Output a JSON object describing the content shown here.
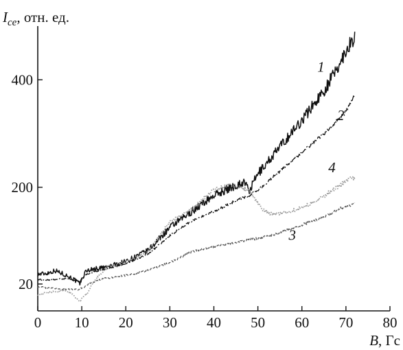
{
  "chart_data": {
    "type": "line",
    "title": "",
    "ylabel": {
      "symbol": "I",
      "subscript": "ce",
      "unit": ", отн. ед."
    },
    "xlabel": {
      "symbol": "B",
      "unit": ", Гс"
    },
    "xlim": [
      0,
      80
    ],
    "ylim": [
      -30,
      500
    ],
    "x_ticks": [
      0,
      10,
      20,
      30,
      40,
      50,
      60,
      70,
      80
    ],
    "y_ticks": [
      20,
      200,
      400
    ],
    "grid": false,
    "legend": "none",
    "series": [
      {
        "label": "1",
        "style": "solid",
        "color": "#111111",
        "label_pos": [
          63.5,
          415
        ],
        "x": [
          0,
          2,
          4,
          6,
          8,
          9.5,
          11,
          13,
          16,
          20,
          25,
          30,
          35,
          40,
          44,
          47,
          48,
          50,
          55,
          60,
          65,
          68,
          70,
          72
        ],
        "y": [
          38,
          40,
          45,
          38,
          30,
          20,
          45,
          48,
          52,
          62,
          82,
          125,
          155,
          185,
          200,
          210,
          192,
          225,
          275,
          325,
          380,
          420,
          455,
          480
        ],
        "noise": 3.5
      },
      {
        "label": "2",
        "style": "dashdot",
        "color": "#111111",
        "label_pos": [
          68,
          325
        ],
        "x": [
          0,
          3,
          6,
          9.5,
          11,
          15,
          20,
          25,
          30,
          35,
          40,
          45,
          48,
          50,
          55,
          60,
          65,
          70,
          72
        ],
        "y": [
          28,
          28,
          30,
          25,
          38,
          47,
          58,
          75,
          110,
          138,
          155,
          175,
          185,
          195,
          230,
          265,
          300,
          340,
          375
        ],
        "noise": 1.2
      },
      {
        "label": "3",
        "style": "dashed",
        "color": "#555555",
        "label_pos": [
          57,
          102
        ],
        "x": [
          0,
          3,
          6,
          9.5,
          12,
          15,
          20,
          25,
          30,
          35,
          40,
          45,
          50,
          55,
          60,
          65,
          68,
          72
        ],
        "y": [
          15,
          12,
          10,
          10,
          22,
          30,
          36,
          45,
          60,
          80,
          90,
          98,
          105,
          115,
          130,
          145,
          158,
          170
        ],
        "noise": 1.5
      },
      {
        "label": "4",
        "style": "dotted",
        "color": "#999999",
        "label_pos": [
          66,
          228
        ],
        "x": [
          0,
          3,
          6,
          8,
          9.5,
          11,
          13,
          16,
          20,
          25,
          30,
          35,
          40,
          43,
          45,
          47,
          48.5,
          50,
          51,
          53,
          56,
          60,
          64,
          67,
          70,
          72
        ],
        "y": [
          0,
          5,
          8,
          0,
          -12,
          0,
          28,
          52,
          62,
          80,
          135,
          160,
          195,
          205,
          202,
          198,
          190,
          170,
          160,
          150,
          152,
          162,
          178,
          195,
          212,
          218
        ],
        "noise": 1.8
      }
    ]
  }
}
